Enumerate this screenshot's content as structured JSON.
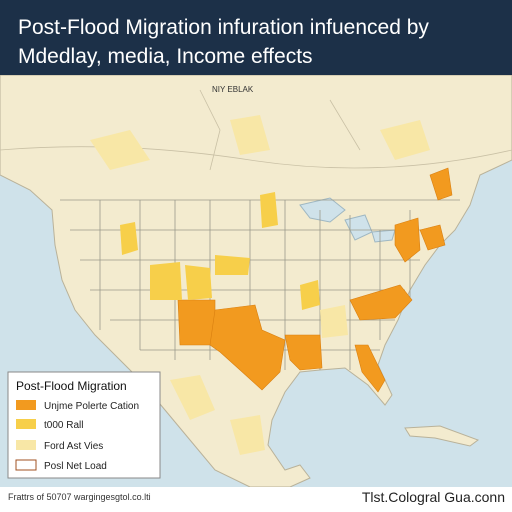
{
  "header": {
    "title_lines": [
      "Post-Flood Migration infuration infuenced by",
      "Mdedlay, media, Income effects"
    ]
  },
  "map": {
    "label": "NIY EBLAK"
  },
  "legend": {
    "title": "Post-Flood Migration",
    "items": [
      "Unjme Polerte Cation",
      "t000 Rall",
      "Ford Ast Vies",
      "Posl Net Load"
    ]
  },
  "footer": {
    "left": "Frattrs of 50707 wargingesgtol.co.lti",
    "right": "Tlst.Cologral Gua.conn"
  }
}
